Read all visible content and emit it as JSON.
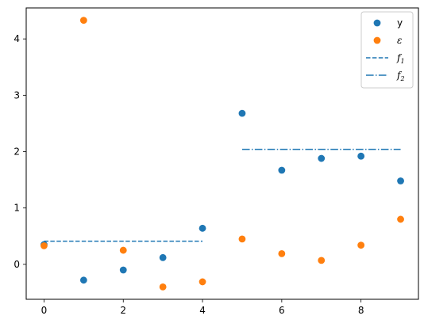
{
  "chart_data": {
    "type": "scatter",
    "title": "",
    "xlabel": "",
    "ylabel": "",
    "xlim": [
      -0.45,
      9.45
    ],
    "ylim": [
      -0.62,
      4.55
    ],
    "xticks": [
      0,
      2,
      4,
      6,
      8
    ],
    "yticks": [
      0,
      1,
      2,
      3,
      4
    ],
    "grid": false,
    "legend_position": "top-right",
    "series": [
      {
        "name": "y",
        "kind": "scatter",
        "color": "#1f77b4",
        "x": [
          0,
          1,
          2,
          3,
          4,
          5,
          6,
          7,
          8,
          9
        ],
        "values": [
          0.35,
          -0.28,
          -0.1,
          0.12,
          0.64,
          2.68,
          1.67,
          1.88,
          1.92,
          1.48
        ]
      },
      {
        "name": "ε",
        "kind": "scatter",
        "color": "#ff7f0e",
        "x": [
          0,
          1,
          2,
          3,
          4,
          5,
          6,
          7,
          8,
          9
        ],
        "values": [
          0.33,
          4.33,
          0.25,
          -0.4,
          -0.31,
          0.45,
          0.19,
          0.07,
          0.34,
          0.8
        ]
      },
      {
        "name": "f",
        "subscript": "1",
        "kind": "line",
        "style": "dashed",
        "color": "#1f77b4",
        "x": [
          0,
          4
        ],
        "values": [
          0.41,
          0.41
        ]
      },
      {
        "name": "f",
        "subscript": "2",
        "kind": "line",
        "style": "dashdot",
        "color": "#1f77b4",
        "x": [
          5,
          9
        ],
        "values": [
          2.04,
          2.04
        ]
      }
    ]
  }
}
